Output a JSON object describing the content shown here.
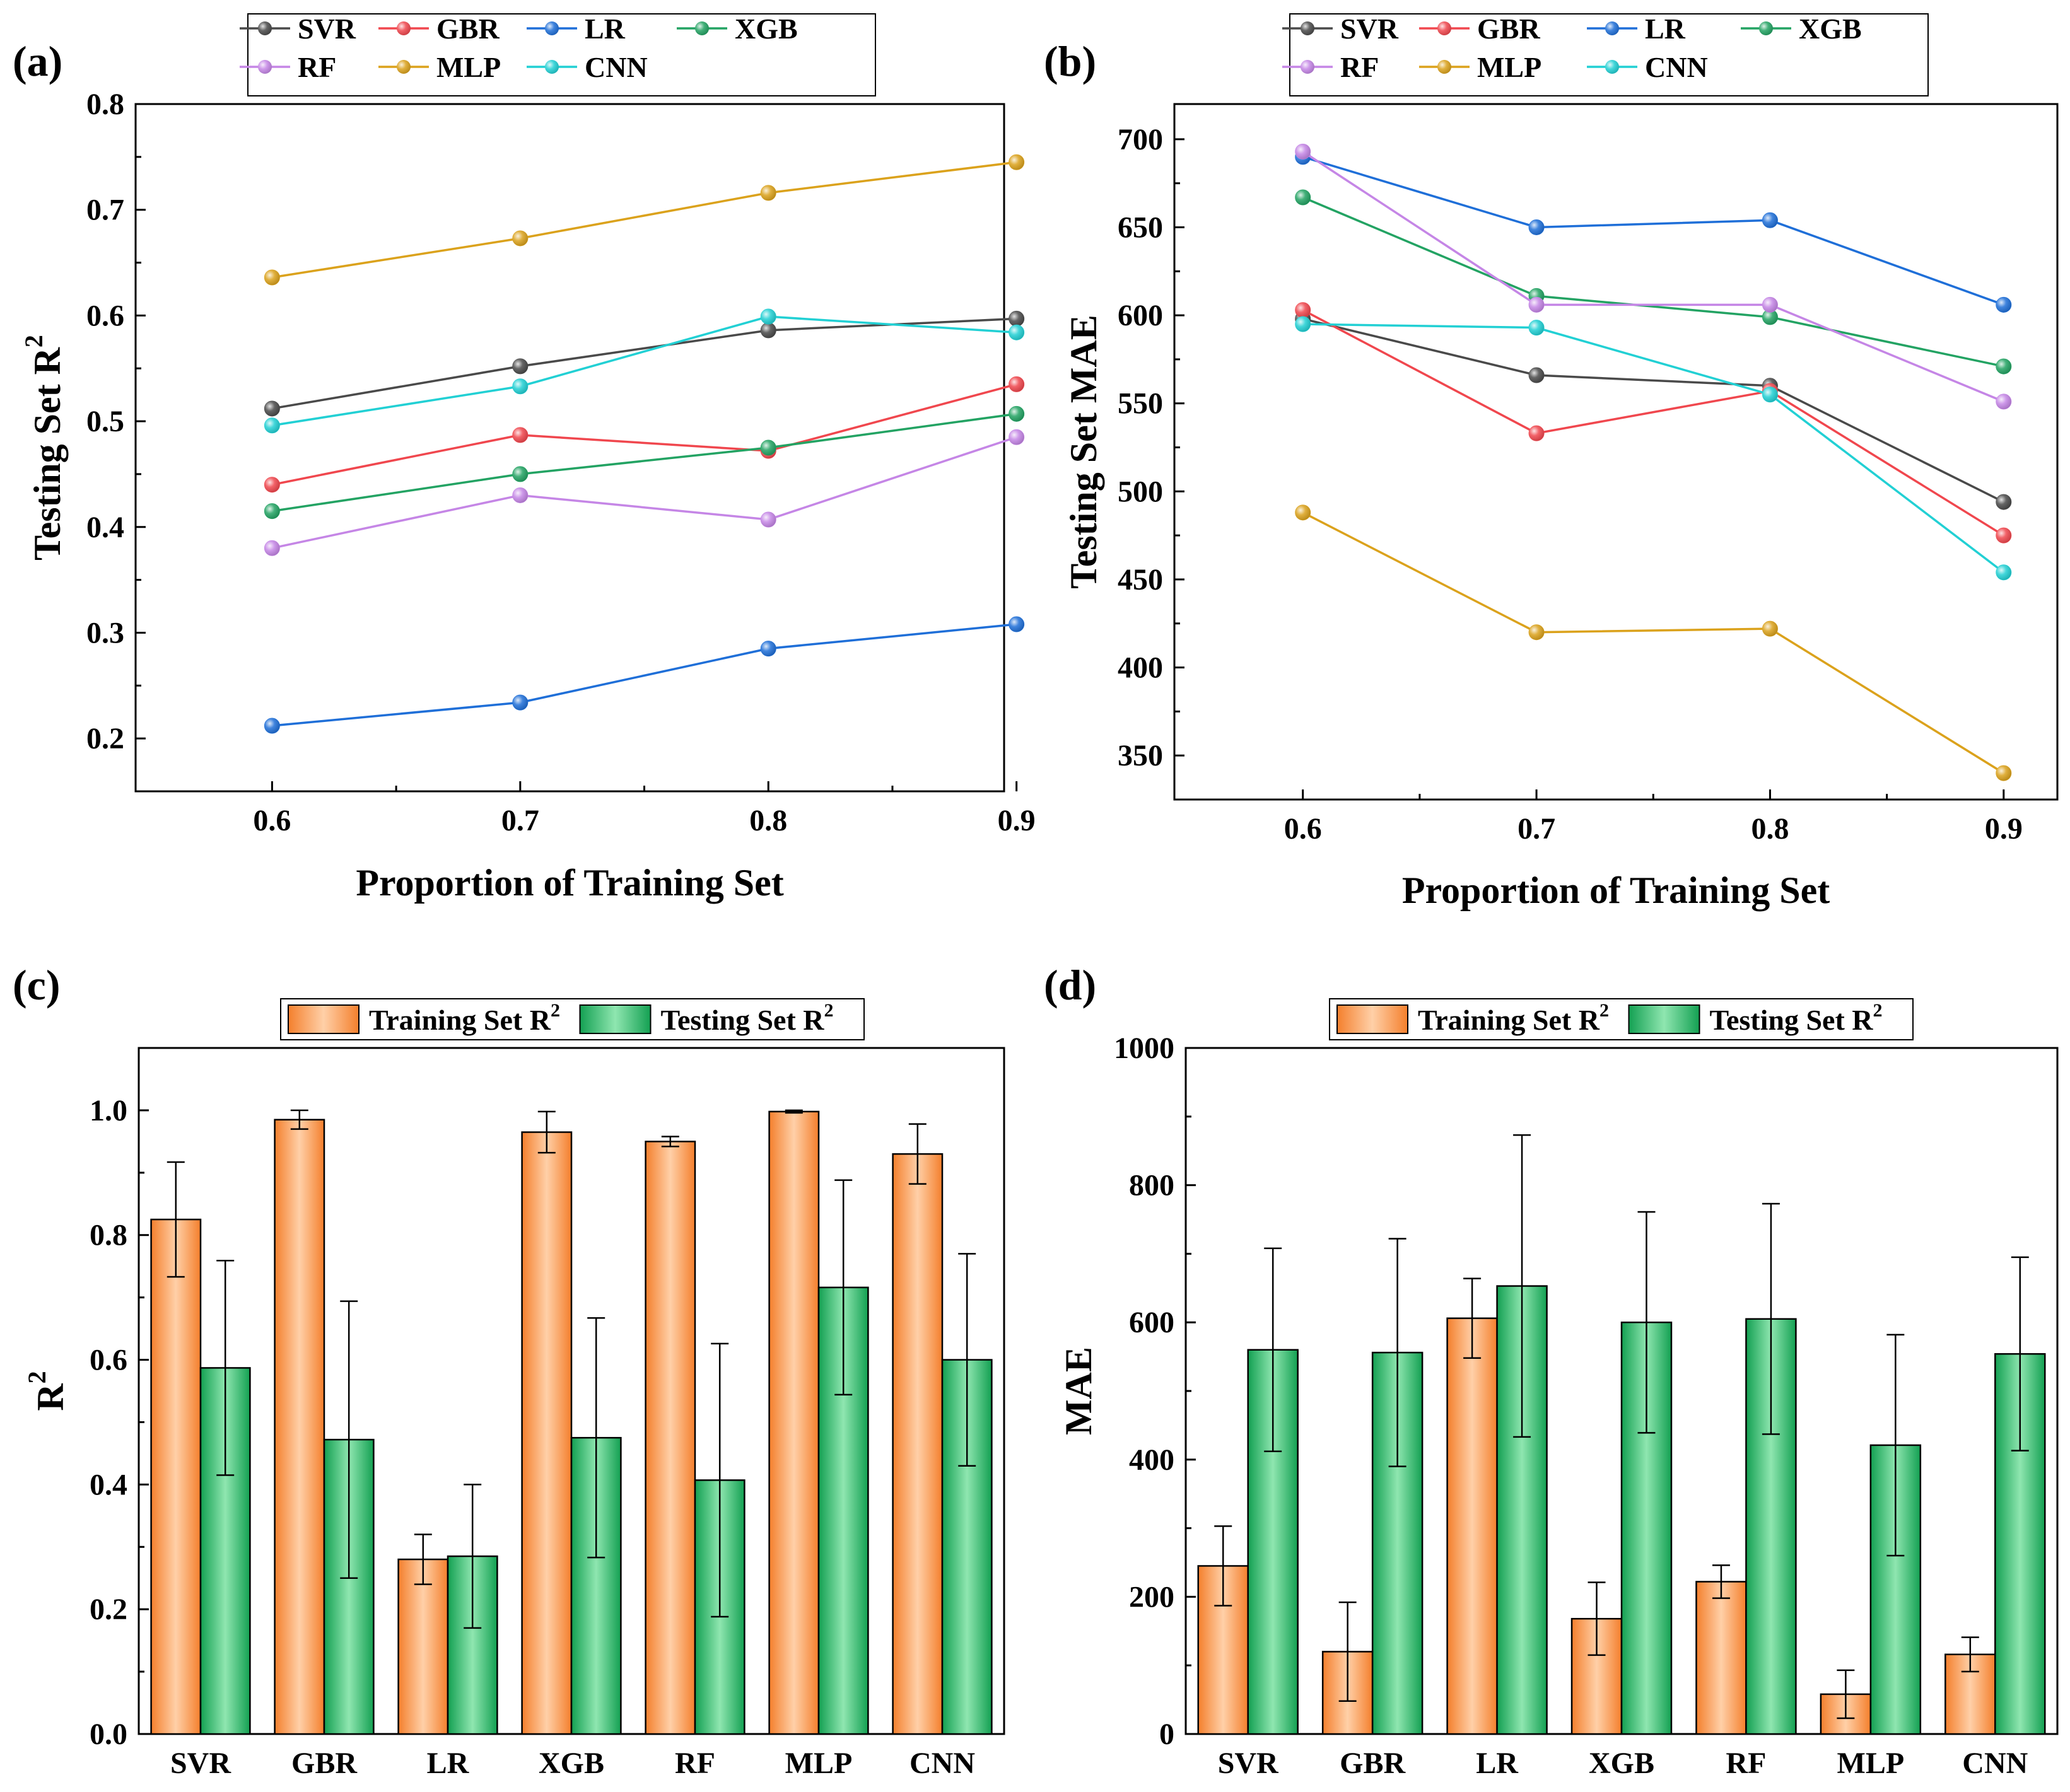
{
  "figure": {
    "panels": [
      "(a)",
      "(b)",
      "(c)",
      "(d)"
    ]
  },
  "colors": {
    "SVR": "#4a4a4a",
    "GBR": "#f0474e",
    "LR": "#1f6fd8",
    "XGB": "#23a363",
    "RF": "#c586e6",
    "MLP": "#dba21c",
    "CNN": "#22d0d4",
    "training_bar": "#f99a55",
    "testing_bar": "#27b064"
  },
  "chart_data": [
    {
      "id": "a",
      "type": "line",
      "panel_label": "(a)",
      "title": "",
      "xlabel": "Proportion of Training Set",
      "ylabel": "Testing Set R",
      "ylabel_sup": "2",
      "x": [
        0.6,
        0.7,
        0.8,
        0.9
      ],
      "xticks": [
        "0.6",
        "0.7",
        "0.8",
        "0.9"
      ],
      "xlim": [
        0.545,
        0.895
      ],
      "ylim": [
        0.15,
        0.8
      ],
      "yticks": [
        "0.2",
        "0.3",
        "0.4",
        "0.5",
        "0.6",
        "0.7",
        "0.8"
      ],
      "legend": [
        "SVR",
        "GBR",
        "LR",
        "XGB",
        "RF",
        "MLP",
        "CNN"
      ],
      "legend_position": "top",
      "series": [
        {
          "name": "SVR",
          "values": [
            0.512,
            0.552,
            0.586,
            0.597
          ]
        },
        {
          "name": "GBR",
          "values": [
            0.44,
            0.487,
            0.472,
            0.535
          ]
        },
        {
          "name": "LR",
          "values": [
            0.212,
            0.234,
            0.285,
            0.308
          ]
        },
        {
          "name": "XGB",
          "values": [
            0.415,
            0.45,
            0.475,
            0.507
          ]
        },
        {
          "name": "RF",
          "values": [
            0.38,
            0.43,
            0.407,
            0.485
          ]
        },
        {
          "name": "MLP",
          "values": [
            0.636,
            0.673,
            0.716,
            0.745
          ]
        },
        {
          "name": "CNN",
          "values": [
            0.496,
            0.533,
            0.599,
            0.584
          ]
        }
      ]
    },
    {
      "id": "b",
      "type": "line",
      "panel_label": "(b)",
      "title": "",
      "xlabel": "Proportion of Training Set",
      "ylabel": "Testing Set MAE",
      "x": [
        0.6,
        0.7,
        0.8,
        0.9
      ],
      "xticks": [
        "0.6",
        "0.7",
        "0.8",
        "0.9"
      ],
      "xlim": [
        0.545,
        0.923
      ],
      "ylim": [
        325,
        720
      ],
      "yticks": [
        "350",
        "400",
        "450",
        "500",
        "550",
        "600",
        "650",
        "700"
      ],
      "legend": [
        "SVR",
        "GBR",
        "LR",
        "XGB",
        "RF",
        "MLP",
        "CNN"
      ],
      "legend_position": "top",
      "series": [
        {
          "name": "SVR",
          "values": [
            598,
            566,
            560,
            494
          ]
        },
        {
          "name": "GBR",
          "values": [
            603,
            533,
            557,
            475
          ]
        },
        {
          "name": "LR",
          "values": [
            690,
            650,
            654,
            606
          ]
        },
        {
          "name": "XGB",
          "values": [
            667,
            611,
            599,
            571
          ]
        },
        {
          "name": "RF",
          "values": [
            693,
            606,
            606,
            551
          ]
        },
        {
          "name": "MLP",
          "values": [
            488,
            420,
            422,
            340
          ]
        },
        {
          "name": "CNN",
          "values": [
            595,
            593,
            555,
            454
          ]
        }
      ]
    },
    {
      "id": "c",
      "type": "bar",
      "panel_label": "(c)",
      "title": "",
      "xlabel": "",
      "ylabel": "R",
      "ylabel_sup": "2",
      "categories": [
        "SVR",
        "GBR",
        "LR",
        "XGB",
        "RF",
        "MLP",
        "CNN"
      ],
      "ylim": [
        0.0,
        1.1
      ],
      "yticks": [
        "0.0",
        "0.2",
        "0.4",
        "0.6",
        "0.8",
        "1.0"
      ],
      "legend_position": "top",
      "series": [
        {
          "name": "Training Set R",
          "sup": "2",
          "values": [
            0.825,
            0.985,
            0.28,
            0.965,
            0.95,
            0.998,
            0.93
          ],
          "errors": [
            0.092,
            0.015,
            0.04,
            0.033,
            0.008,
            0.002,
            0.048
          ]
        },
        {
          "name": "Testing Set R",
          "sup": "2",
          "values": [
            0.587,
            0.472,
            0.285,
            0.475,
            0.407,
            0.716,
            0.6
          ],
          "errors": [
            0.172,
            0.222,
            0.115,
            0.192,
            0.219,
            0.172,
            0.17
          ]
        }
      ]
    },
    {
      "id": "d",
      "type": "bar",
      "panel_label": "(d)",
      "title": "",
      "xlabel": "",
      "ylabel": "MAE",
      "categories": [
        "SVR",
        "GBR",
        "LR",
        "XGB",
        "RF",
        "MLP",
        "CNN"
      ],
      "ylim": [
        0,
        1000
      ],
      "yticks": [
        "0",
        "200",
        "400",
        "600",
        "800",
        "1000"
      ],
      "legend_position": "top",
      "series": [
        {
          "name": "Training Set R",
          "sup": "2",
          "values": [
            245,
            120,
            606,
            168,
            222,
            58,
            116
          ],
          "errors": [
            58,
            72,
            58,
            53,
            24,
            35,
            25
          ]
        },
        {
          "name": "Testing Set R",
          "sup": "2",
          "values": [
            560,
            556,
            653,
            600,
            605,
            421,
            554
          ],
          "errors": [
            148,
            166,
            220,
            161,
            168,
            161,
            141
          ]
        }
      ]
    }
  ]
}
